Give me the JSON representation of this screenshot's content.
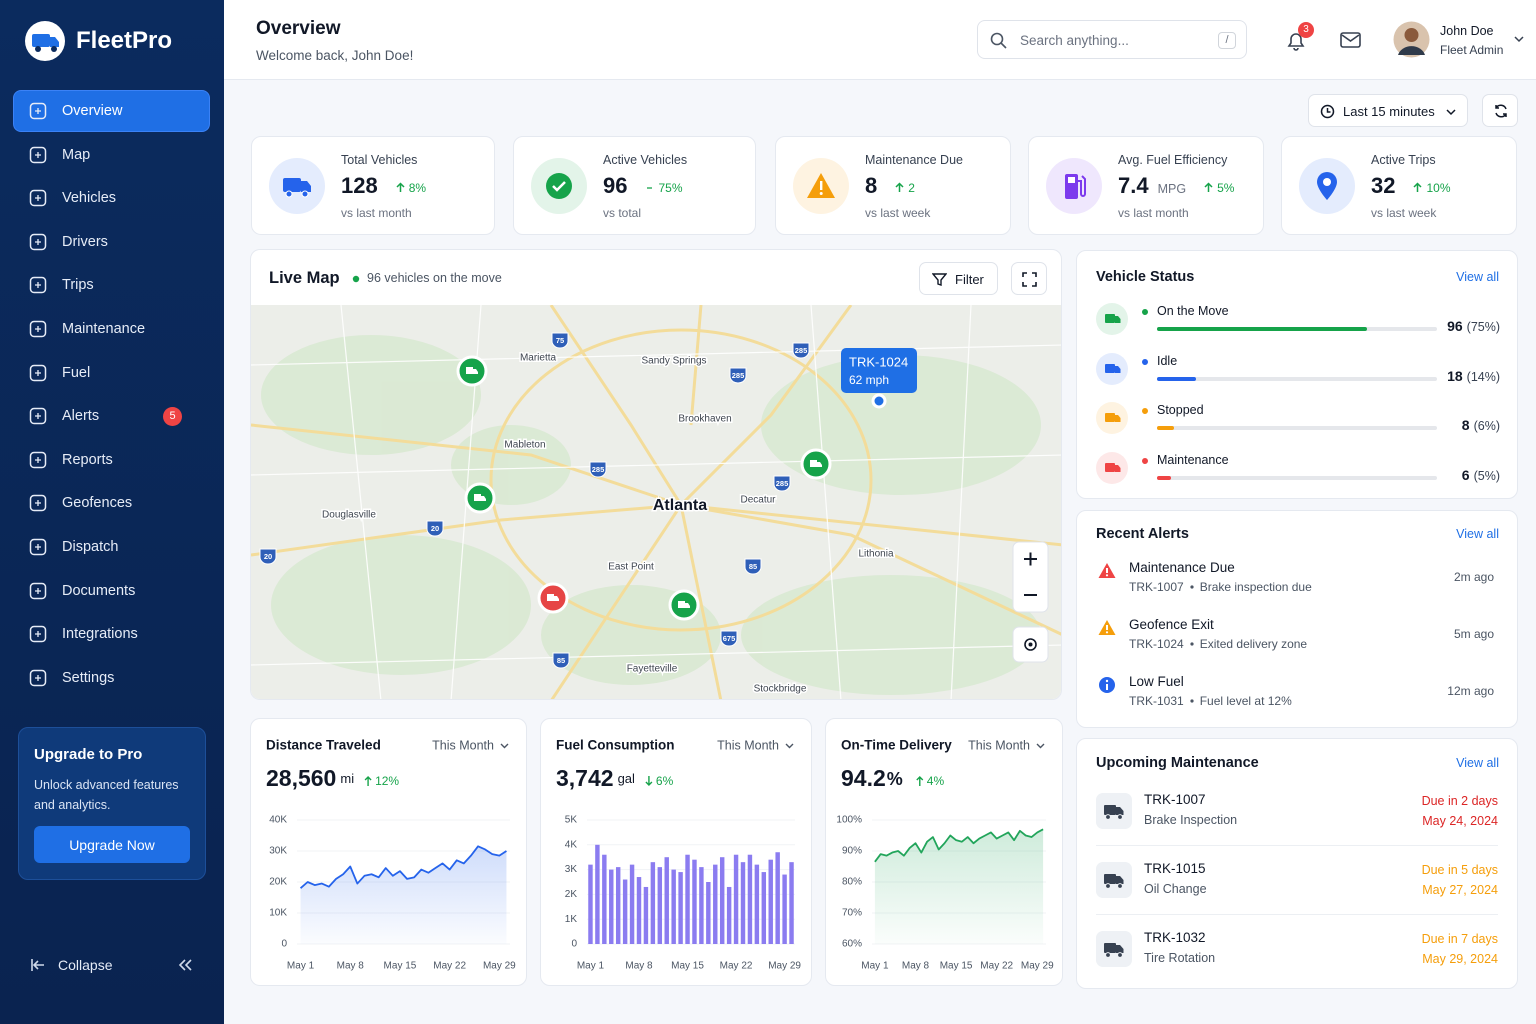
{
  "sidebar": {
    "brand": "FleetPro",
    "nav": [
      {
        "label": "Overview"
      },
      {
        "label": "Map"
      },
      {
        "label": "Vehicles"
      },
      {
        "label": "Drivers"
      },
      {
        "label": "Trips"
      },
      {
        "label": "Maintenance"
      },
      {
        "label": "Fuel"
      },
      {
        "label": "Alerts",
        "badge": 5
      },
      {
        "label": "Reports"
      },
      {
        "label": "Geofences"
      },
      {
        "label": "Dispatch"
      },
      {
        "label": "Documents"
      },
      {
        "label": "Integrations"
      },
      {
        "label": "Settings"
      }
    ],
    "upgrade": {
      "title": "Upgrade to Pro",
      "text": "Unlock advanced features and analytics.",
      "button": "Upgrade Now"
    },
    "collapse": "Collapse"
  },
  "header": {
    "title": "Overview",
    "subtitle": "Welcome back, John Doe!",
    "search_placeholder": "Search anything...",
    "search_shortcut": "/",
    "notifications": 3,
    "user": {
      "name": "John Doe",
      "role": "Fleet Admin"
    }
  },
  "toolbar": {
    "time_range": "Last 15 minutes"
  },
  "stats": [
    {
      "label": "Total Vehicles",
      "value": 128,
      "change": "8%",
      "change_direction": "up",
      "note": "vs last month",
      "color": "#2563eb"
    },
    {
      "label": "Active Vehicles",
      "value": 96,
      "change": "75%",
      "change_direction": "none",
      "note": "vs total",
      "color": "#16a34a"
    },
    {
      "label": "Maintenance Due",
      "value": 8,
      "change": "2",
      "change_direction": "up",
      "note": "vs last week",
      "color": "#f59e0b"
    },
    {
      "label": "Avg. Fuel Efficiency",
      "value": 7.4,
      "unit": "MPG",
      "change": "5%",
      "change_direction": "up",
      "note": "vs last month",
      "color": "#7c3aed"
    },
    {
      "label": "Active Trips",
      "value": 32,
      "change": "10%",
      "change_direction": "up",
      "note": "vs last week",
      "color": "#2563eb"
    }
  ],
  "live_map": {
    "title": "Live Map",
    "status": "96 vehicles on the move",
    "filter": "Filter",
    "places": [
      "Marietta",
      "Sandy Springs",
      "Brookhaven",
      "Mableton",
      "Atlanta",
      "Decatur",
      "Douglasville",
      "East Point",
      "Lithonia",
      "Fayetteville",
      "Stockbridge"
    ],
    "highways": [
      "75",
      "285",
      "285",
      "285",
      "285",
      "20",
      "20",
      "85",
      "675",
      "85"
    ],
    "tooltip": {
      "vehicle": "TRK-1024",
      "speed": "62 mph"
    }
  },
  "vehicle_status": {
    "title": "Vehicle Status",
    "view_all": "View all",
    "items": [
      {
        "name": "On the Move",
        "count": 96,
        "percent": 75,
        "percent_label": "(75%)",
        "color": "#16a34a"
      },
      {
        "name": "Idle",
        "count": 18,
        "percent": 14,
        "percent_label": "(14%)",
        "color": "#2563eb"
      },
      {
        "name": "Stopped",
        "count": 8,
        "percent": 6,
        "percent_label": "(6%)",
        "color": "#f59e0b"
      },
      {
        "name": "Maintenance",
        "count": 6,
        "percent": 5,
        "percent_label": "(5%)",
        "color": "#ef4444"
      }
    ]
  },
  "recent_alerts": {
    "title": "Recent Alerts",
    "view_all": "View all",
    "items": [
      {
        "title": "Maintenance Due",
        "vehicle": "TRK-1007",
        "detail": "Brake inspection due",
        "time": "2m ago",
        "color": "#ef4444"
      },
      {
        "title": "Geofence Exit",
        "vehicle": "TRK-1024",
        "detail": "Exited delivery zone",
        "time": "5m ago",
        "color": "#f59e0b"
      },
      {
        "title": "Low Fuel",
        "vehicle": "TRK-1031",
        "detail": "Fuel level at 12%",
        "time": "12m ago",
        "color": "#2563eb"
      }
    ]
  },
  "upcoming_maintenance": {
    "title": "Upcoming Maintenance",
    "view_all": "View all",
    "items": [
      {
        "vehicle": "TRK-1007",
        "service": "Brake Inspection",
        "due": "Due in 2 days",
        "date": "May 24, 2024",
        "color": "#dc2626"
      },
      {
        "vehicle": "TRK-1015",
        "service": "Oil Change",
        "due": "Due in 5 days",
        "date": "May 27, 2024",
        "color": "#f59e0b"
      },
      {
        "vehicle": "TRK-1032",
        "service": "Tire Rotation",
        "due": "Due in 7 days",
        "date": "May 29, 2024",
        "color": "#f59e0b"
      }
    ]
  },
  "chart_data": [
    {
      "type": "area",
      "title": "Distance Traveled",
      "period": "This Month",
      "total": "28,560",
      "unit": "mi",
      "change": "12%",
      "change_direction": "up",
      "color": "#2563eb",
      "grid": true,
      "categories": [
        "May 1",
        null,
        null,
        null,
        null,
        null,
        null,
        "May 8",
        null,
        null,
        null,
        null,
        null,
        null,
        "May 15",
        null,
        null,
        null,
        null,
        null,
        null,
        "May 22",
        null,
        null,
        null,
        null,
        null,
        null,
        "May 29",
        null
      ],
      "values": [
        18000,
        20000,
        19000,
        19500,
        18500,
        21000,
        22500,
        25000,
        19500,
        22000,
        22500,
        21500,
        24500,
        22000,
        23500,
        21000,
        21500,
        24000,
        23000,
        24500,
        26000,
        24000,
        27000,
        26000,
        28500,
        31500,
        30500,
        29000,
        28500,
        30000
      ],
      "ylim": [
        0,
        40000
      ],
      "yticks": [
        0,
        {
          "value": 10000,
          "label": "10K"
        },
        {
          "value": 20000,
          "label": "20K"
        },
        {
          "value": 30000,
          "label": "30K"
        },
        {
          "value": 40000,
          "label": "40K"
        }
      ]
    },
    {
      "type": "bar",
      "title": "Fuel Consumption",
      "period": "This Month",
      "total": "3,742",
      "unit": "gal",
      "change": "6%",
      "change_direction": "down",
      "color": "#8b7cf0",
      "grid": true,
      "categories": [
        "May 1",
        null,
        null,
        null,
        null,
        null,
        null,
        "May 8",
        null,
        null,
        null,
        null,
        null,
        null,
        "May 15",
        null,
        null,
        null,
        null,
        null,
        null,
        "May 22",
        null,
        null,
        null,
        null,
        null,
        null,
        "May 29",
        null
      ],
      "values": [
        3200,
        4000,
        3600,
        3000,
        3100,
        2600,
        3200,
        2700,
        2300,
        3300,
        3100,
        3500,
        3000,
        2900,
        3600,
        3400,
        3100,
        2500,
        3200,
        3500,
        2300,
        3600,
        3300,
        3600,
        3200,
        2900,
        3400,
        3700,
        2800,
        3300
      ],
      "ylim": [
        0,
        5000
      ],
      "yticks": [
        0,
        {
          "value": 1000,
          "label": "1K"
        },
        {
          "value": 2000,
          "label": "2K"
        },
        {
          "value": 3000,
          "label": "3K"
        },
        {
          "value": 4000,
          "label": "4K"
        },
        {
          "value": 5000,
          "label": "5K"
        }
      ]
    },
    {
      "type": "area",
      "title": "On-Time Delivery",
      "period": "This Month",
      "total": "94.2",
      "unit": "%",
      "change": "4%",
      "change_direction": "up",
      "color": "#22a55b",
      "grid": true,
      "categories": [
        "May 1",
        null,
        null,
        null,
        null,
        null,
        null,
        "May 8",
        null,
        null,
        null,
        null,
        null,
        null,
        "May 15",
        null,
        null,
        null,
        null,
        null,
        null,
        "May 22",
        null,
        null,
        null,
        null,
        null,
        null,
        "May 29",
        null
      ],
      "values": [
        86.5,
        89,
        88.5,
        89.5,
        90,
        88.5,
        91,
        92.5,
        89.5,
        93,
        94.5,
        90.5,
        92.5,
        95,
        93.5,
        93,
        94.5,
        92.5,
        94,
        95,
        96,
        94,
        95,
        96,
        93.5,
        96.5,
        95,
        94.5,
        96,
        97
      ],
      "ylim": [
        60,
        100
      ],
      "yticks": [
        {
          "value": 60,
          "label": "60%"
        },
        {
          "value": 70,
          "label": "70%"
        },
        {
          "value": 80,
          "label": "80%"
        },
        {
          "value": 90,
          "label": "90%"
        },
        {
          "value": 100,
          "label": "100%"
        }
      ]
    }
  ]
}
